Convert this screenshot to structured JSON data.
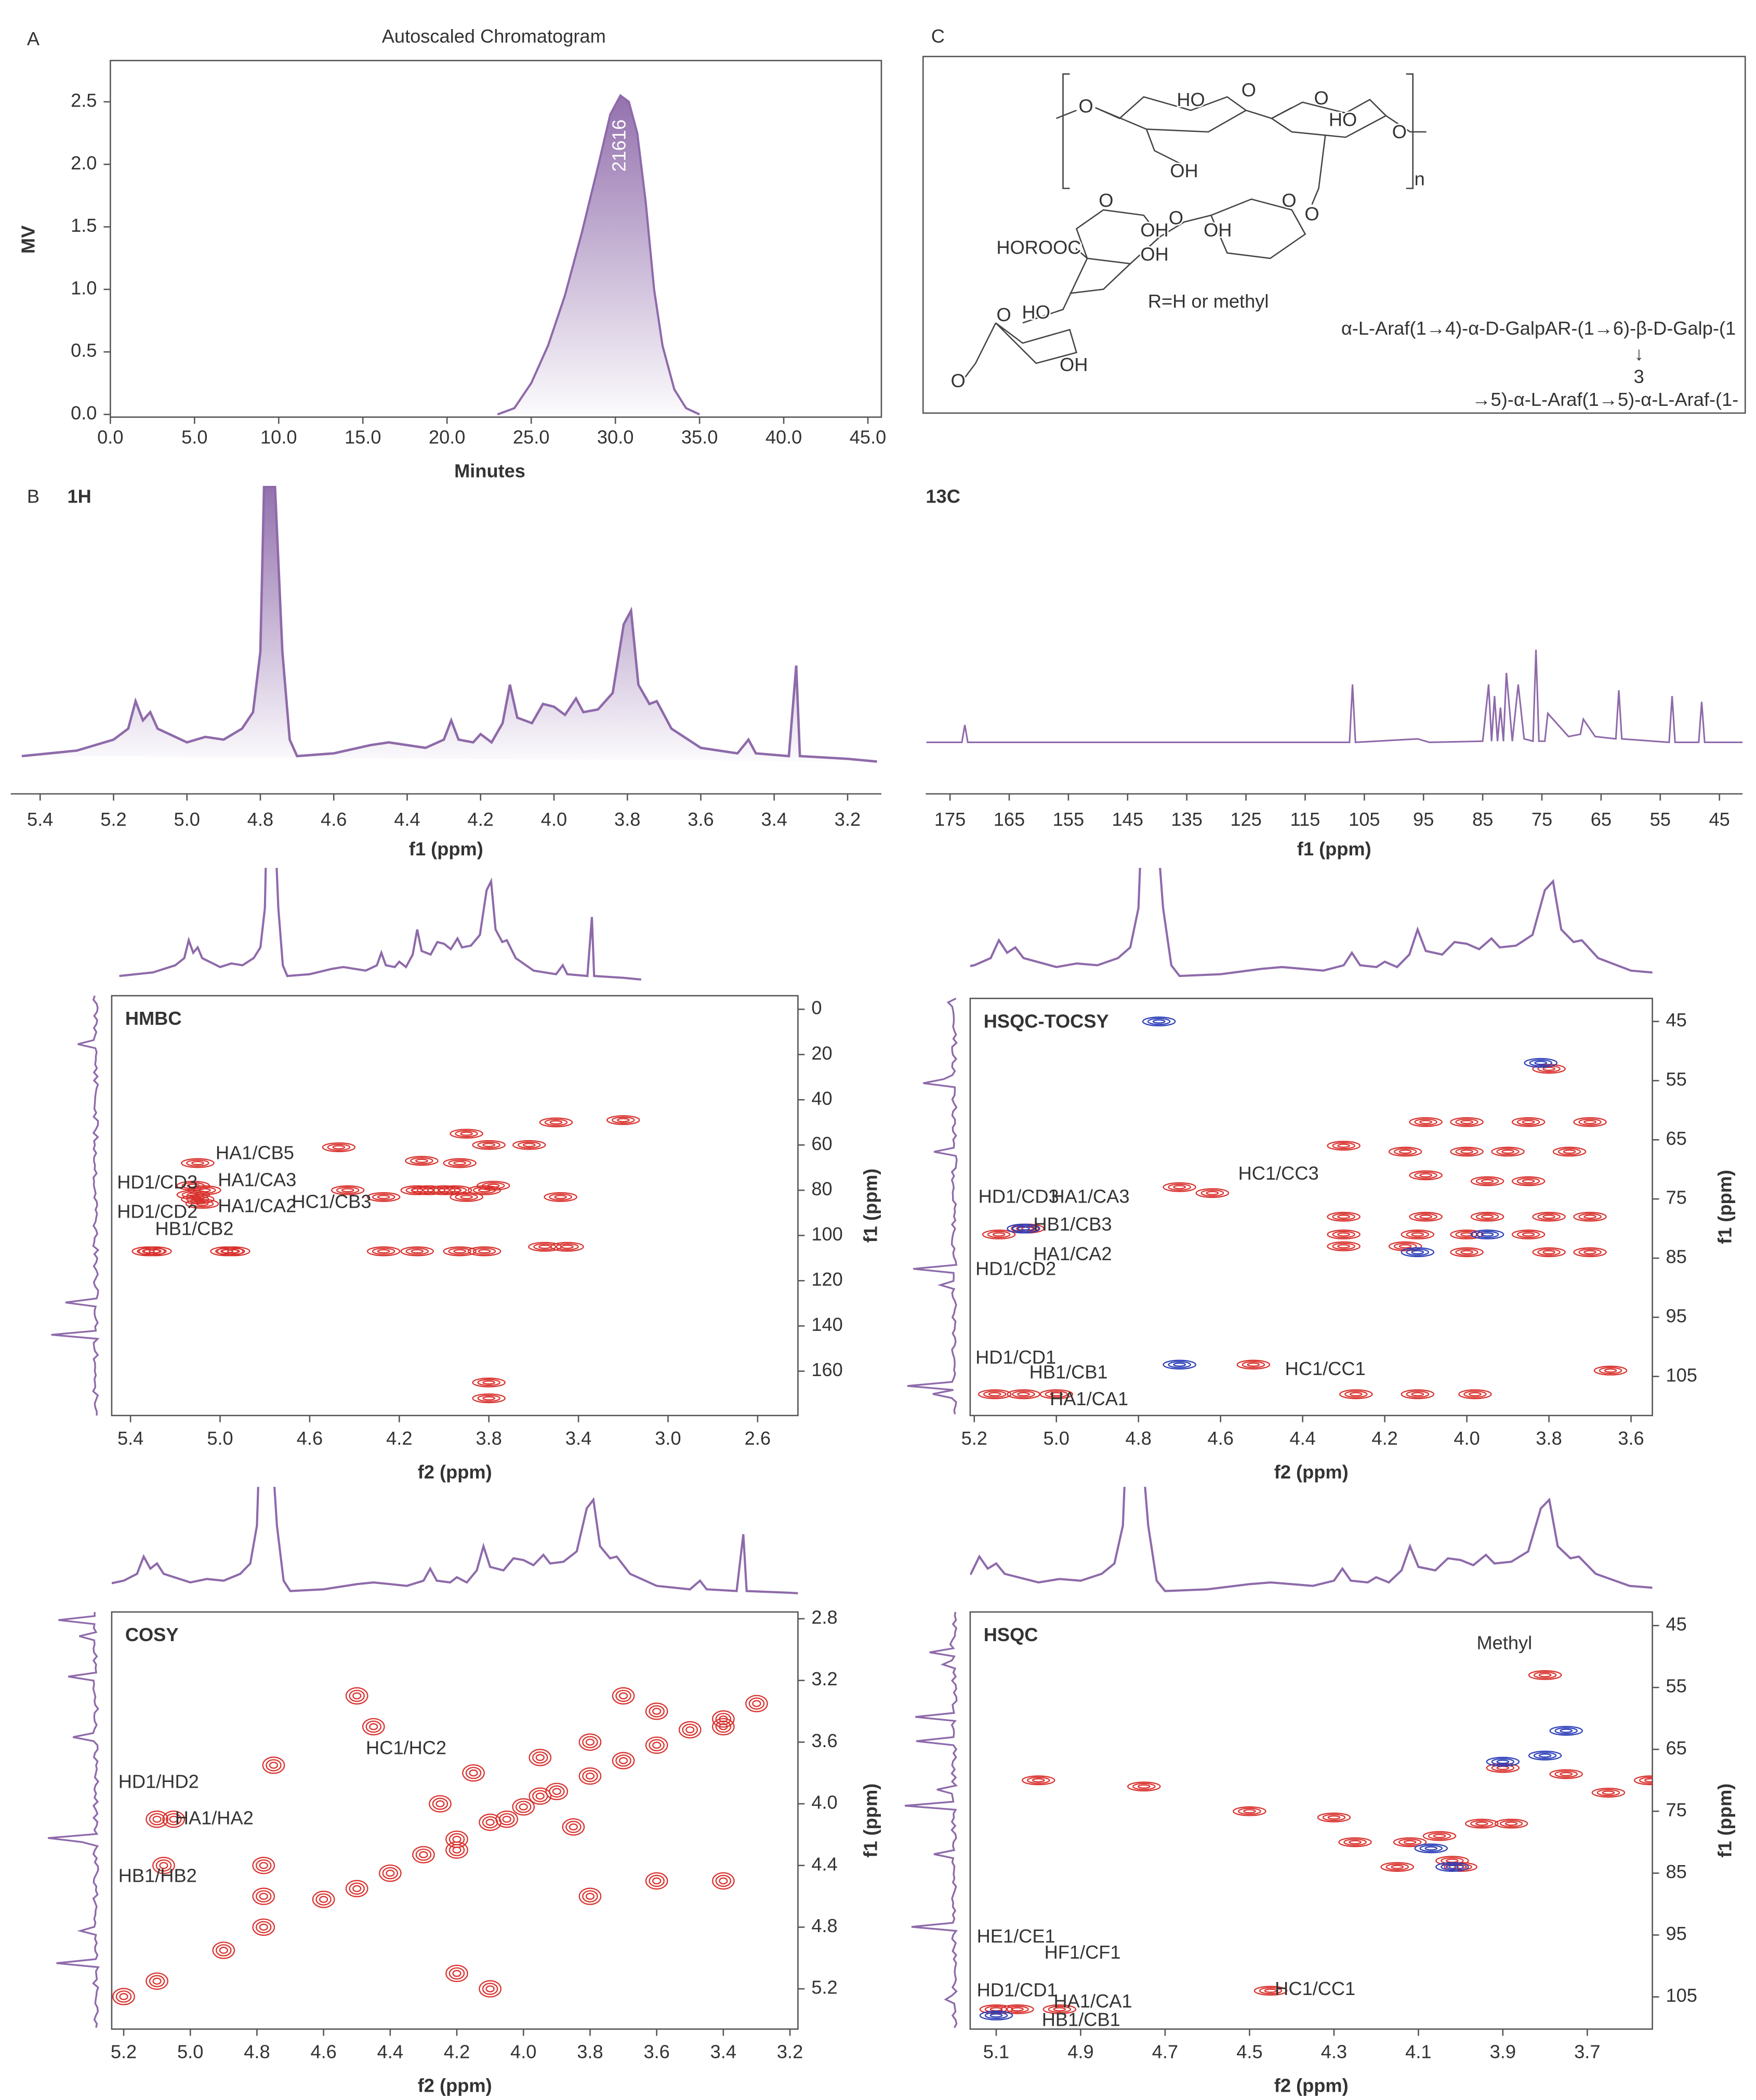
{
  "chart_data": [
    {
      "type": "area",
      "panel_label": "A",
      "title": "Autoscaled  Chromatogram",
      "x_label": "Minutes",
      "y_label": "MV",
      "color": "#8e6aaa",
      "x": [
        23,
        24,
        25,
        26,
        27,
        28,
        29,
        29.7,
        30.3,
        30.8,
        31.3,
        31.8,
        32.3,
        32.8,
        33.5,
        34.2,
        35
      ],
      "values": [
        0,
        0.05,
        0.25,
        0.55,
        0.95,
        1.45,
        2.0,
        2.4,
        2.55,
        2.5,
        2.25,
        1.7,
        1.0,
        0.55,
        0.2,
        0.05,
        0
      ],
      "annotation": {
        "text": "21616",
        "x": 30.3,
        "y": 2.15
      },
      "xlim": [
        0,
        45.8
      ],
      "ylim": [
        0,
        2.83
      ],
      "xticks": [
        {
          "value": 0,
          "label": "0.0"
        },
        {
          "value": 5,
          "label": "5.0"
        },
        {
          "value": 10,
          "label": "10.0"
        },
        {
          "value": 15,
          "label": "15.0"
        },
        {
          "value": 20,
          "label": "20.0"
        },
        {
          "value": 25,
          "label": "25.0"
        },
        {
          "value": 30,
          "label": "30.0"
        },
        {
          "value": 35,
          "label": "35.0"
        },
        {
          "value": 40,
          "label": "40.0"
        },
        {
          "value": 45,
          "label": "45.0"
        }
      ],
      "yticks": [
        {
          "value": 0,
          "label": "0.0"
        },
        0.5,
        {
          "value": 1,
          "label": "1.0"
        },
        1.5,
        {
          "value": 2,
          "label": "2.0"
        },
        2.5
      ]
    },
    {
      "type": "line",
      "panel_label": "B",
      "title": "1H",
      "x_label": "f1 (ppm)",
      "color": "#8e6aaa",
      "x": [
        5.45,
        5.3,
        5.2,
        5.16,
        5.14,
        5.12,
        5.1,
        5.08,
        5.0,
        4.95,
        4.9,
        4.85,
        4.82,
        4.8,
        4.79,
        4.76,
        4.74,
        4.72,
        4.7,
        4.6,
        4.5,
        4.45,
        4.35,
        4.3,
        4.28,
        4.26,
        4.22,
        4.2,
        4.17,
        4.14,
        4.12,
        4.1,
        4.06,
        4.03,
        4.0,
        3.97,
        3.94,
        3.92,
        3.88,
        3.84,
        3.81,
        3.79,
        3.77,
        3.74,
        3.72,
        3.68,
        3.6,
        3.5,
        3.47,
        3.45,
        3.36,
        3.34,
        3.33,
        3.2,
        3.12
      ],
      "values": [
        2,
        4,
        8,
        12,
        22,
        15,
        18,
        12,
        7,
        9,
        8,
        12,
        18,
        40,
        100,
        100,
        40,
        8,
        2,
        3,
        6,
        7,
        5,
        8,
        15,
        8,
        7,
        10,
        7,
        14,
        28,
        16,
        14,
        21,
        20,
        17,
        23,
        18,
        19,
        25,
        50,
        55,
        28,
        21,
        22,
        12,
        5,
        3,
        8,
        3,
        2,
        35,
        2,
        1,
        0
      ],
      "xlim": [
        5.48,
        3.108
      ],
      "ylim": [
        0,
        100
      ],
      "xticks": [
        5.4,
        5.2,
        {
          "value": 5,
          "label": "5.0"
        },
        4.8,
        4.6,
        4.4,
        4.2,
        {
          "value": 4,
          "label": "4.0"
        },
        3.8,
        3.6,
        3.4,
        3.2
      ]
    },
    {
      "type": "line",
      "title": "13C",
      "x_label": "f1 (ppm)",
      "color": "#8e6aaa",
      "x": [
        179,
        173,
        172.5,
        172,
        107.5,
        107,
        106.5,
        96,
        94,
        85,
        84,
        83.5,
        83,
        82.5,
        82,
        81.5,
        81,
        80,
        79,
        78,
        76.5,
        76,
        75.5,
        74.5,
        74,
        70.5,
        68.5,
        68,
        66,
        62.5,
        62,
        61.5,
        53.5,
        53,
        52.5,
        48.5,
        48,
        47.5,
        41
      ],
      "values": [
        5,
        5,
        20,
        5,
        5,
        55,
        5,
        8,
        5,
        6,
        55,
        6,
        45,
        6,
        35,
        6,
        65,
        6,
        55,
        8,
        6,
        85,
        6,
        6,
        30,
        10,
        12,
        25,
        10,
        8,
        50,
        8,
        5,
        45,
        5,
        5,
        40,
        5,
        5
      ],
      "xlim": [
        179.1,
        41.1
      ],
      "ylim": [
        0,
        100
      ],
      "xticks": [
        175,
        165,
        155,
        145,
        135,
        125,
        115,
        105,
        95,
        85,
        75,
        65,
        55,
        45
      ]
    },
    {
      "type": "contour",
      "title": "HMBC",
      "x_label": "f2 (ppm)",
      "y_label": "f1 (ppm)",
      "xlim": [
        5.484,
        2.42
      ],
      "ylim": [
        179.6,
        -6
      ],
      "xticks": [
        5.4,
        {
          "value": 5,
          "label": "5.0"
        },
        4.6,
        4.2,
        3.8,
        3.4,
        {
          "value": 3,
          "label": "3.0"
        },
        2.6
      ],
      "yticks": [
        0,
        20,
        40,
        60,
        80,
        100,
        120,
        140,
        160
      ],
      "peaks": [
        {
          "color": "#d9322e",
          "x": [
            5.32,
            5.29,
            5.1,
            5.12,
            5.12,
            5.1,
            5.07,
            5.08,
            4.97,
            4.94,
            4.43,
            4.27,
            4.12,
            4.07,
            4.0,
            3.95,
            3.9,
            3.82,
            3.78,
            3.48,
            3.9,
            3.8,
            3.62,
            3.5,
            3.2,
            4.1,
            3.93,
            4.47,
            4.27,
            4.12,
            3.93,
            3.8,
            3.8,
            3.55,
            3.45,
            3.82
          ],
          "y": [
            107,
            107,
            68,
            78,
            82,
            84,
            80,
            86,
            107,
            107,
            80,
            83,
            80,
            80,
            80,
            80,
            83,
            80,
            78,
            83,
            55,
            60,
            60,
            50,
            49,
            67,
            68,
            61,
            107,
            107,
            107,
            165,
            172,
            105,
            105,
            107
          ]
        }
      ],
      "annotations": [
        {
          "text": "HA1/CB5",
          "x": 5.02,
          "y": 64
        },
        {
          "text": "HD1/CD3",
          "x": 5.46,
          "y": 77
        },
        {
          "text": "HA1/CA3",
          "x": 5.01,
          "y": 76
        },
        {
          "text": "HD1/CD2",
          "x": 5.46,
          "y": 90
        },
        {
          "text": "HA1/CA2",
          "x": 5.01,
          "y": 87.5
        },
        {
          "text": "HC1/CB3",
          "x": 4.68,
          "y": 85.7
        },
        {
          "text": "HB1/CB2",
          "x": 5.29,
          "y": 97.6
        }
      ]
    },
    {
      "type": "contour",
      "title": "HSQC-TOCSY",
      "x_label": "f2 (ppm)",
      "y_label": "f1 (ppm)",
      "xlim": [
        5.21,
        3.548
      ],
      "ylim": [
        111.6,
        41.1
      ],
      "xticks": [
        5.2,
        {
          "value": 5,
          "label": "5.0"
        },
        4.8,
        4.6,
        4.4,
        4.2,
        {
          "value": 4,
          "label": "4.0"
        },
        3.8,
        3.6
      ],
      "yticks": [
        45,
        55,
        65,
        75,
        85,
        95,
        105
      ],
      "peaks": [
        {
          "color": "#d9322e",
          "x": [
            3.8,
            4.1,
            4.0,
            3.85,
            3.7,
            4.3,
            4.15,
            4.0,
            3.9,
            3.75,
            4.1,
            3.95,
            3.85,
            4.3,
            4.1,
            3.95,
            3.8,
            3.7,
            4.3,
            4.12,
            4.0,
            3.85,
            4.3,
            4.15,
            4.0,
            3.8,
            3.7,
            5.14,
            5.07,
            4.52,
            4.27,
            4.12,
            3.98,
            3.65,
            5.15,
            5.08,
            5.0,
            4.7,
            4.62
          ],
          "y": [
            53,
            62,
            62,
            62,
            62,
            66,
            67,
            67,
            67,
            67,
            71,
            72,
            72,
            78,
            78,
            78,
            78,
            78,
            81,
            81,
            81,
            81,
            83,
            83,
            84,
            84,
            84,
            81,
            80,
            103,
            108,
            108,
            108,
            104,
            108,
            108,
            108,
            73,
            74
          ]
        },
        {
          "color": "#2d3fb8",
          "x": [
            3.82,
            4.75,
            4.12,
            3.95,
            5.08,
            4.7
          ],
          "y": [
            52,
            45,
            84,
            81,
            80,
            103
          ]
        }
      ],
      "annotations": [
        {
          "text": "HC1/CC3",
          "x": 4.557,
          "y": 70.9
        },
        {
          "text": "HD1/CD3",
          "x": 5.19,
          "y": 74.8
        },
        {
          "text": "HA1/CA3",
          "x": 5.013,
          "y": 74.8
        },
        {
          "text": "HB1/CB3",
          "x": 5.056,
          "y": 79.5
        },
        {
          "text": "HA1/CA2",
          "x": 5.056,
          "y": 84.5
        },
        {
          "text": "HD1/CD2",
          "x": 5.197,
          "y": 87
        },
        {
          "text": "HD1/CD1",
          "x": 5.197,
          "y": 102
        },
        {
          "text": "HB1/CB1",
          "x": 5.066,
          "y": 104.5
        },
        {
          "text": "HA1/CA1",
          "x": 5.016,
          "y": 109
        },
        {
          "text": "HC1/CC1",
          "x": 4.443,
          "y": 103.9
        }
      ]
    },
    {
      "type": "contour",
      "title": "COSY",
      "x_label": "f2 (ppm)",
      "y_label": "f1 (ppm)",
      "xlim": [
        5.236,
        3.176
      ],
      "ylim": [
        5.461,
        2.756
      ],
      "xticks": [
        5.2,
        {
          "value": 5,
          "label": "5.0"
        },
        4.8,
        4.6,
        4.4,
        4.2,
        {
          "value": 4,
          "label": "4.0"
        },
        3.8,
        3.6,
        3.4,
        3.2
      ],
      "yticks": [
        2.8,
        3.2,
        3.6,
        {
          "value": 4,
          "label": "4.0"
        },
        4.4,
        4.8,
        5.2
      ],
      "peaks": [
        {
          "color": "#d9322e",
          "x": [
            5.2,
            5.1,
            4.9,
            4.78,
            4.6,
            4.5,
            4.4,
            4.3,
            4.2,
            4.1,
            4.0,
            3.9,
            3.8,
            3.7,
            3.6,
            3.5,
            3.4,
            3.3,
            4.25,
            4.15,
            4.05,
            3.95,
            3.85,
            3.95,
            3.8,
            4.2,
            3.7,
            3.6,
            3.4,
            5.1,
            5.05,
            5.08,
            4.78,
            4.78,
            4.5,
            4.45,
            4.2,
            4.1,
            3.6,
            3.8,
            3.4,
            4.75
          ],
          "y": [
            5.25,
            5.15,
            4.95,
            4.8,
            4.62,
            4.55,
            4.45,
            4.33,
            4.23,
            4.12,
            4.02,
            3.92,
            3.82,
            3.72,
            3.62,
            3.52,
            3.45,
            3.35,
            4.0,
            3.8,
            4.1,
            3.95,
            4.15,
            3.7,
            3.6,
            4.3,
            3.3,
            3.4,
            3.5,
            4.1,
            4.1,
            4.4,
            4.4,
            4.6,
            3.3,
            3.5,
            5.1,
            5.2,
            4.5,
            4.6,
            4.5,
            3.75
          ]
        }
      ],
      "annotations": [
        {
          "text": "HD1/HD2",
          "x": 5.216,
          "y": 3.865
        },
        {
          "text": "HA1/HA2",
          "x": 5.046,
          "y": 4.1
        },
        {
          "text": "HB1/HB2",
          "x": 5.216,
          "y": 4.475
        },
        {
          "text": "HC1/HC2",
          "x": 4.473,
          "y": 3.646
        }
      ]
    },
    {
      "type": "contour",
      "title": "HSQC",
      "x_label": "f2 (ppm)",
      "y_label": "f1 (ppm)",
      "xlim": [
        5.1617,
        3.5458
      ],
      "ylim": [
        110.2,
        42.8
      ],
      "xticks": [
        5.1,
        4.9,
        4.7,
        4.5,
        4.3,
        4.1,
        3.9,
        3.7
      ],
      "yticks": [
        45,
        55,
        65,
        75,
        85,
        95,
        105
      ],
      "peaks": [
        {
          "color": "#d9322e",
          "x": [
            3.8,
            5.0,
            4.75,
            4.5,
            4.3,
            4.25,
            4.12,
            4.05,
            3.95,
            3.88,
            4.02,
            4.0,
            4.15,
            3.9,
            3.75,
            3.65,
            3.55,
            4.45,
            5.1,
            5.05,
            4.95
          ],
          "y": [
            53,
            70,
            71,
            75,
            76,
            80,
            80,
            79,
            77,
            77,
            83,
            84,
            84,
            68,
            69,
            72,
            70,
            104,
            107,
            107,
            107
          ]
        },
        {
          "color": "#2d3fb8",
          "x": [
            3.75,
            3.8,
            3.9,
            5.1,
            4.07,
            4.02
          ],
          "y": [
            62,
            66,
            67,
            108,
            81,
            84
          ]
        }
      ],
      "annotations": [
        {
          "text": "Methyl",
          "x": 3.962,
          "y": 48
        },
        {
          "text": "HE1/CE1",
          "x": 5.146,
          "y": 95.4
        },
        {
          "text": "HF1/CF1",
          "x": 4.986,
          "y": 98
        },
        {
          "text": "HD1/CD1",
          "x": 5.146,
          "y": 104.1
        },
        {
          "text": "HA1/CA1",
          "x": 4.964,
          "y": 105.9
        },
        {
          "text": "HB1/CB1",
          "x": 4.992,
          "y": 108.9
        },
        {
          "text": "HC1/CC1",
          "x": 4.44,
          "y": 103.9
        }
      ]
    },
    {
      "type": "structure",
      "panel_label": "C",
      "labels": [
        "O",
        "HO",
        "O",
        "O",
        "HO",
        "O",
        "OH",
        "n",
        "O",
        "O",
        "O",
        "O",
        "OH",
        "OH",
        "HOROOC",
        "OH",
        "R=H or methyl",
        "O",
        "HO",
        "OH",
        "O",
        "α-L-Araf(1→4)-α-D-GalpAR-(1→6)-β-D-Galp-(1",
        "↓",
        "3",
        "→5)-α-L-Araf(1→5)-α-L-Araf-(1-"
      ]
    }
  ]
}
